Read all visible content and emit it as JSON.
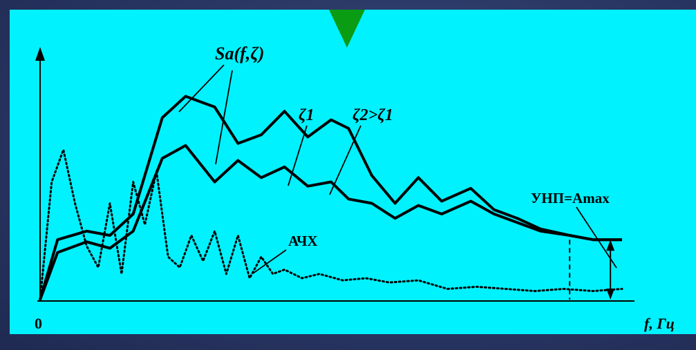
{
  "chart_data": {
    "type": "line",
    "title": "",
    "xlabel": "f,  Гц",
    "ylabel": "",
    "origin_label": "0",
    "grid": false,
    "legend": "none",
    "axis_color": "#000000",
    "background_color": "#00f2ff",
    "annotations": {
      "sa": "Sa(f,ζ)",
      "zeta1": "ζ1",
      "zeta2": "ζ2>ζ1",
      "unp": "УНП=Amax",
      "achx": "АЧХ"
    },
    "series": [
      {
        "id": "zeta1",
        "style": "solid",
        "x": [
          0,
          3,
          8,
          12,
          16,
          21,
          25,
          30,
          34,
          38,
          42,
          46,
          50,
          53,
          57,
          61,
          65,
          69,
          74,
          78,
          82,
          86,
          91,
          95,
          100
        ],
        "y": [
          0,
          0.28,
          0.32,
          0.3,
          0.4,
          0.85,
          0.95,
          0.9,
          0.73,
          0.77,
          0.88,
          0.76,
          0.84,
          0.8,
          0.58,
          0.45,
          0.57,
          0.46,
          0.52,
          0.42,
          0.38,
          0.33,
          0.3,
          0.28,
          0.28
        ]
      },
      {
        "id": "zeta2",
        "style": "solid",
        "x": [
          0,
          3,
          8,
          12,
          16,
          21,
          25,
          30,
          34,
          38,
          42,
          46,
          50,
          53,
          57,
          61,
          65,
          69,
          74,
          78,
          82,
          86,
          91,
          95,
          100
        ],
        "y": [
          0,
          0.22,
          0.27,
          0.24,
          0.32,
          0.66,
          0.72,
          0.55,
          0.65,
          0.57,
          0.62,
          0.53,
          0.55,
          0.47,
          0.45,
          0.38,
          0.44,
          0.4,
          0.46,
          0.4,
          0.36,
          0.32,
          0.3,
          0.28,
          0.28
        ]
      },
      {
        "id": "achx",
        "style": "dotted",
        "x": [
          0,
          2,
          4,
          6,
          8,
          10,
          12,
          14,
          16,
          18,
          20,
          22,
          24,
          26,
          28,
          30,
          32,
          34,
          36,
          38,
          40,
          42,
          45,
          48,
          52,
          56,
          60,
          65,
          70,
          75,
          80,
          85,
          90,
          95,
          100
        ],
        "y": [
          0,
          0.55,
          0.7,
          0.45,
          0.25,
          0.15,
          0.45,
          0.12,
          0.55,
          0.35,
          0.6,
          0.2,
          0.15,
          0.3,
          0.18,
          0.32,
          0.12,
          0.3,
          0.1,
          0.2,
          0.12,
          0.14,
          0.1,
          0.12,
          0.09,
          0.1,
          0.08,
          0.09,
          0.05,
          0.06,
          0.05,
          0.04,
          0.05,
          0.04,
          0.05
        ]
      }
    ],
    "xlim": [
      0,
      100
    ],
    "ylim": [
      0,
      1
    ]
  }
}
